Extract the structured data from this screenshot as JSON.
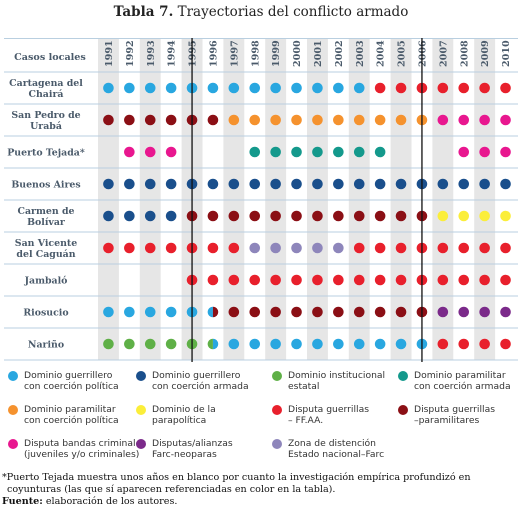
{
  "title_label": "Tabla 7.",
  "title_text": "Trayectorias del conflicto armado",
  "colors": {
    "DGP": "#29a7e0",
    "DGA": "#1a4f8c",
    "DI": "#5fb047",
    "DPA": "#14998c",
    "DPCP": "#f5922e",
    "DPARA": "#fbee3a",
    "DGF": "#e8202c",
    "DGPARA": "#8b0f15",
    "BANDAS": "#e8178f",
    "NEO": "#7b2a8a",
    "ZONA": "#8e86bb"
  },
  "chart_data": {
    "type": "table",
    "row_header": "Casos locales",
    "years": [
      "1991",
      "1992",
      "1993",
      "1994",
      "1995",
      "1996",
      "1997",
      "1998",
      "1999",
      "2000",
      "2001",
      "2002",
      "2003",
      "2004",
      "2005",
      "2006",
      "2007",
      "2008",
      "2009",
      "2010"
    ],
    "marked_years": [
      "1995",
      "2006"
    ],
    "cases": [
      {
        "name": [
          "Cartagena del",
          "Chairá"
        ],
        "cells": [
          "DGP",
          "DGP",
          "DGP",
          "DGP",
          "DGP",
          "DGP",
          "DGP",
          "DGP",
          "DGP",
          "DGP",
          "DGP",
          "DGP",
          "DGP",
          "DGF",
          "DGF",
          "DGF",
          "DGF",
          "DGF",
          "DGF",
          "DGF"
        ]
      },
      {
        "name": [
          "San Pedro de",
          "Urabá"
        ],
        "cells": [
          "DGPARA",
          "DGPARA",
          "DGPARA",
          "DGPARA",
          "DGPARA",
          "DGPARA",
          "DPCP",
          "DPCP",
          "DPCP",
          "DPCP",
          "DPCP",
          "DPCP",
          "DPCP",
          "DPCP",
          "DPCP",
          "DPCP",
          "BANDAS",
          "BANDAS",
          "BANDAS",
          "BANDAS"
        ]
      },
      {
        "name": [
          "Puerto Tejada*"
        ],
        "cells": [
          "",
          "BANDAS",
          "BANDAS",
          "BANDAS",
          "",
          "",
          "",
          "DPA",
          "DPA",
          "DPA",
          "DPA",
          "DPA",
          "DPA",
          "DPA",
          "",
          "",
          "",
          "BANDAS",
          "BANDAS",
          "BANDAS"
        ]
      },
      {
        "name": [
          "Buenos Aires"
        ],
        "cells": [
          "DGA",
          "DGA",
          "DGA",
          "DGA",
          "DGA",
          "DGA",
          "DGA",
          "DGA",
          "DGA",
          "DGA",
          "DGA",
          "DGA",
          "DGA",
          "DGA",
          "DGA",
          "DGA",
          "DGA",
          "DGA",
          "DGA",
          "DGA"
        ]
      },
      {
        "name": [
          "Carmen de",
          "Bolívar"
        ],
        "cells": [
          "DGA",
          "DGA",
          "DGA",
          "DGA",
          "DGPARA",
          "DGPARA",
          "DGPARA",
          "DGPARA",
          "DGPARA",
          "DGPARA",
          "DGPARA",
          "DGPARA",
          "DGPARA",
          "DGPARA",
          "DGPARA",
          "DGPARA",
          "DPARA",
          "DPARA",
          "DPARA",
          "DPARA"
        ]
      },
      {
        "name": [
          "San Vicente",
          "del Caguán"
        ],
        "cells": [
          "DGF",
          "DGF",
          "DGF",
          "DGF",
          "DGF",
          "DGF",
          "DGF",
          "ZONA",
          "ZONA",
          "ZONA",
          "ZONA",
          "ZONA",
          "DGF",
          "DGF",
          "DGF",
          "DGF",
          "DGF",
          "DGF",
          "DGF",
          "DGF"
        ]
      },
      {
        "name": [
          "Jambaló"
        ],
        "cells": [
          "",
          "",
          "",
          "",
          "DGF",
          "DGF",
          "DGF",
          "DGF",
          "DGF",
          "DGF",
          "DGF",
          "DGF",
          "DGF",
          "DGF",
          "DGF",
          "DGF",
          "DGF",
          "DGF",
          "DGF",
          "DGF"
        ]
      },
      {
        "name": [
          "Riosucio"
        ],
        "cells": [
          "DGP",
          "DGP",
          "DGP",
          "DGP",
          "DGP",
          "DGP/DGPARA",
          "DGPARA",
          "DGPARA",
          "DGPARA",
          "DGPARA",
          "DGPARA",
          "DGPARA",
          "DGPARA",
          "DGPARA",
          "DGPARA",
          "DGPARA",
          "NEO",
          "NEO",
          "NEO",
          "NEO"
        ]
      },
      {
        "name": [
          "Nariño"
        ],
        "cells": [
          "DI",
          "DI",
          "DI",
          "DI",
          "DI",
          "DI/DGP",
          "DGP",
          "DGP",
          "DGP",
          "DGP",
          "DGP",
          "DGP",
          "DGP",
          "DGP",
          "DGP",
          "DGP",
          "DGF",
          "DGF",
          "DGF",
          "DGF"
        ]
      }
    ],
    "legend": [
      {
        "code": "DGP",
        "text": "Dominio guerrillero\ncon coerción política"
      },
      {
        "code": "DGA",
        "text": "Dominio guerrillero\ncon coerción armada"
      },
      {
        "code": "DI",
        "text": "Dominio institucional\nestatal"
      },
      {
        "code": "DPA",
        "text": "Dominio paramilitar\ncon coerción armada"
      },
      {
        "code": "DPCP",
        "text": "Dominio paramilitar\ncon coerción política"
      },
      {
        "code": "DPARA",
        "text": "Dominio de la\nparapolítica"
      },
      {
        "code": "DGF",
        "text": "Disputa guerrillas\n– FF.AA."
      },
      {
        "code": "DGPARA",
        "text": "Disputa guerrillas\n–paramilitares"
      },
      {
        "code": "BANDAS",
        "text": "Disputa bandas criminales\n(juveniles y/o criminales)"
      },
      {
        "code": "NEO",
        "text": "Disputas/alianzas\nFarc-neoparas"
      },
      {
        "code": "ZONA",
        "text": "Zona de distención\nEstado nacional–Farc"
      }
    ]
  },
  "notes": {
    "footnote_line1": "*Puerto Tejada muestra unos años en blanco por cuanto la investigación empírica profundizó en",
    "footnote_line2": "coyunturas (las que sí aparecen referenciadas en color en la tabla).",
    "source_label": "Fuente:",
    "source_text": " elaboración de los autores."
  }
}
